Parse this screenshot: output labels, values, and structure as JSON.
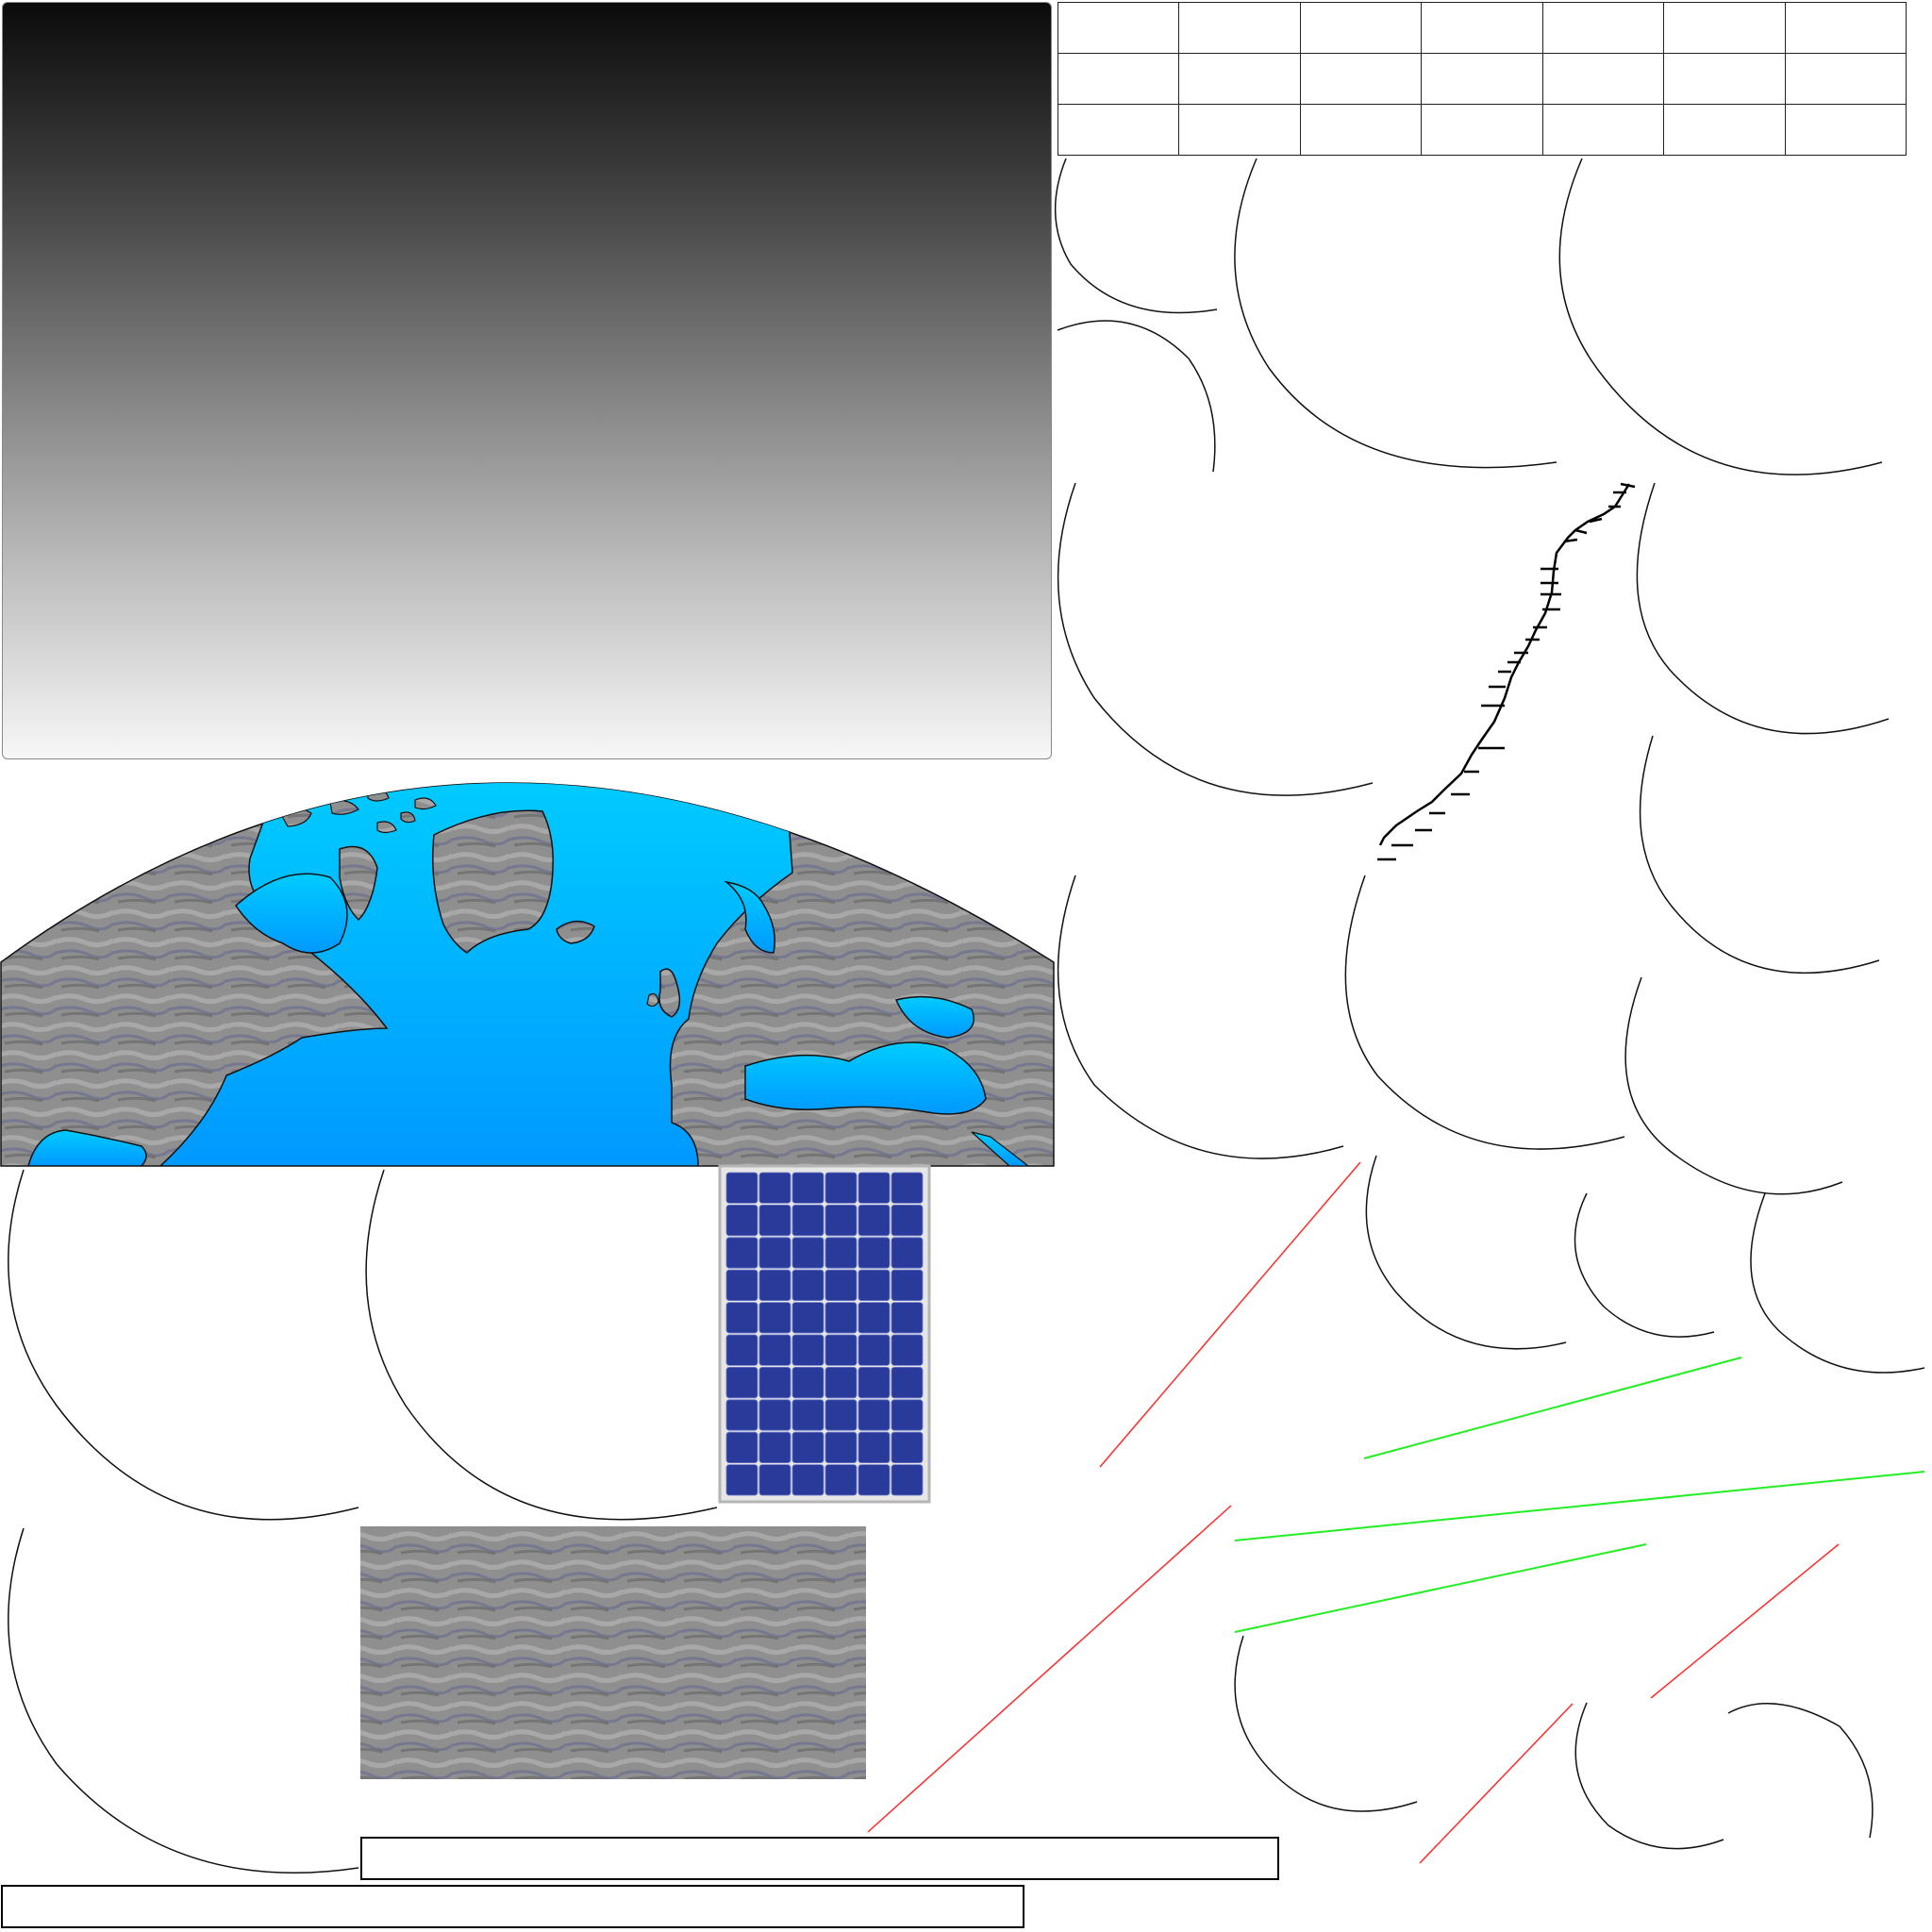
{
  "canvas": {
    "background": "#ffffff"
  },
  "sky_gradient": {
    "top_color": "#0b0b0b",
    "bottom_color": "#f7f7f7"
  },
  "grid": {
    "rows": 3,
    "columns": 7
  },
  "globe": {
    "ocean_colors": [
      "#00ccff",
      "#0099ff"
    ],
    "land_color": "#8c8c8c",
    "icon": "earth-hemisphere-icon"
  },
  "solar_panel": {
    "rows": 10,
    "columns": 6,
    "cell_color": "#2a3a9a",
    "icon": "solar-panel-icon"
  },
  "rock_texture": {
    "colors": [
      "#7d7d7d",
      "#9a9a9a",
      "#6a6e9a"
    ]
  },
  "strokes": {
    "arc_color": "#111111",
    "red_line_color": "#ff2a2a",
    "green_line_color": "#22ee22",
    "lightning_color": "#000000"
  },
  "text_bars": {
    "upper": "",
    "lower": ""
  }
}
